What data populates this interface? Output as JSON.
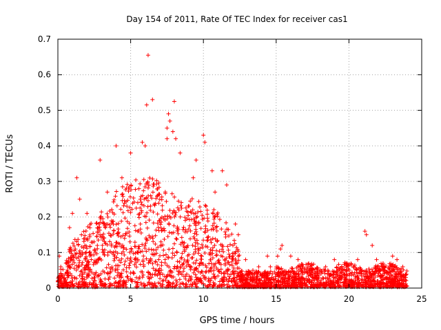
{
  "chart_data": {
    "type": "scatter",
    "title": "Day 154 of 2011, Rate Of TEC Index for receiver cas1",
    "xlabel": "GPS time / hours",
    "ylabel": "ROTI / TECUs",
    "xlim": [
      0,
      25
    ],
    "ylim": [
      0,
      0.7
    ],
    "xticks": [
      0,
      5,
      10,
      15,
      20,
      25
    ],
    "yticks": [
      0,
      0.1,
      0.2,
      0.3,
      0.4,
      0.5,
      0.6,
      0.7
    ],
    "grid": true,
    "marker": "+",
    "series": [
      {
        "name": "ROTI",
        "color": "#ff0000",
        "points": [
          [
            6.2,
            0.655
          ],
          [
            6.5,
            0.53
          ],
          [
            6.1,
            0.515
          ],
          [
            8.0,
            0.525
          ],
          [
            7.6,
            0.49
          ],
          [
            7.7,
            0.47
          ],
          [
            7.5,
            0.45
          ],
          [
            7.9,
            0.44
          ],
          [
            8.1,
            0.42
          ],
          [
            10.0,
            0.43
          ],
          [
            10.1,
            0.41
          ],
          [
            7.5,
            0.42
          ],
          [
            5.8,
            0.41
          ],
          [
            6.0,
            0.4
          ],
          [
            4.0,
            0.4
          ],
          [
            5.0,
            0.38
          ],
          [
            8.4,
            0.38
          ],
          [
            9.5,
            0.36
          ],
          [
            2.9,
            0.36
          ],
          [
            1.3,
            0.31
          ],
          [
            11.3,
            0.33
          ],
          [
            11.6,
            0.29
          ],
          [
            12.2,
            0.18
          ],
          [
            12.4,
            0.15
          ],
          [
            1.5,
            0.25
          ],
          [
            2.0,
            0.21
          ],
          [
            1.0,
            0.21
          ],
          [
            0.8,
            0.17
          ],
          [
            3.4,
            0.27
          ],
          [
            4.4,
            0.31
          ],
          [
            9.3,
            0.31
          ],
          [
            10.6,
            0.33
          ],
          [
            10.8,
            0.27
          ],
          [
            12.9,
            0.08
          ],
          [
            13.4,
            0.05
          ],
          [
            13.8,
            0.06
          ],
          [
            14.4,
            0.09
          ],
          [
            14.6,
            0.06
          ],
          [
            15.1,
            0.09
          ],
          [
            15.3,
            0.11
          ],
          [
            15.4,
            0.12
          ],
          [
            16.0,
            0.09
          ],
          [
            16.5,
            0.08
          ],
          [
            17.3,
            0.05
          ],
          [
            18.4,
            0.06
          ],
          [
            19.0,
            0.08
          ],
          [
            19.8,
            0.07
          ],
          [
            20.6,
            0.08
          ],
          [
            21.1,
            0.16
          ],
          [
            21.2,
            0.15
          ],
          [
            21.6,
            0.12
          ],
          [
            21.9,
            0.08
          ],
          [
            22.4,
            0.06
          ],
          [
            23.0,
            0.09
          ],
          [
            23.3,
            0.08
          ],
          [
            23.7,
            0.06
          ],
          [
            23.9,
            0.03
          ],
          [
            0.1,
            0.09
          ],
          [
            0.2,
            0.06
          ],
          [
            0.0,
            0.02
          ]
        ]
      }
    ]
  }
}
